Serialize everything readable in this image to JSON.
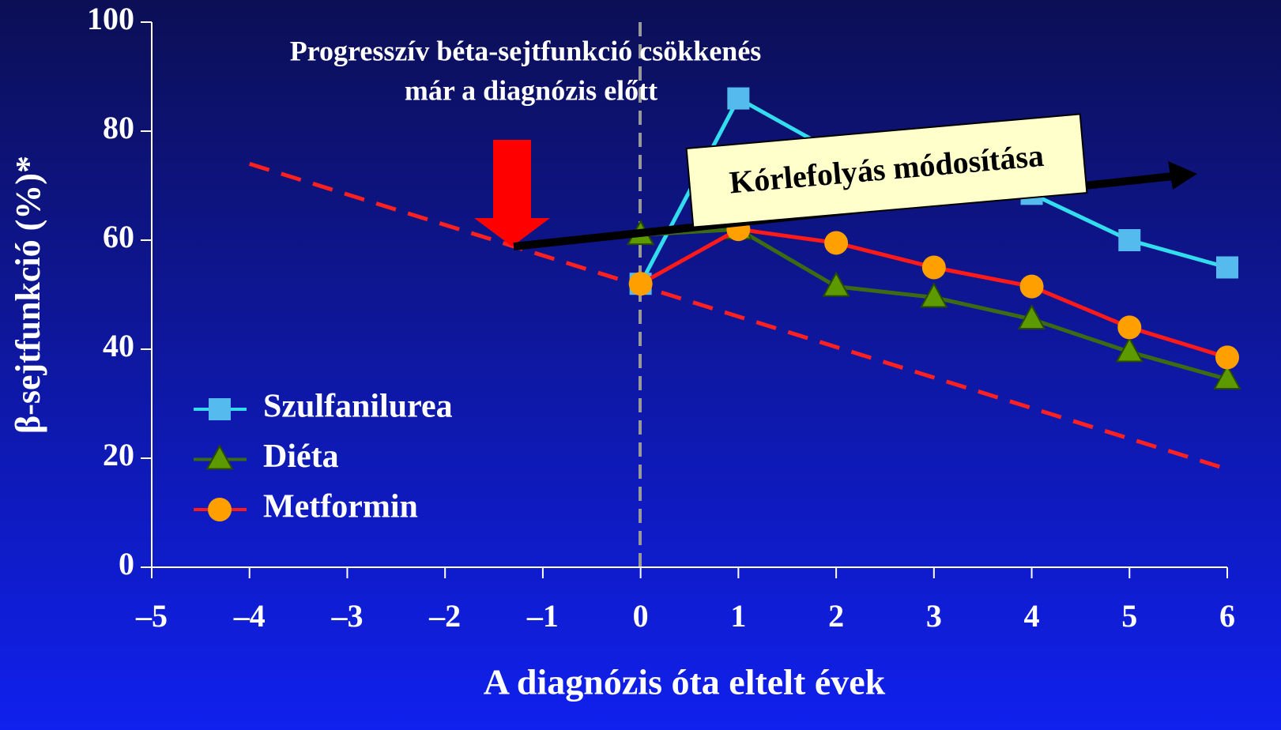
{
  "chart_data": {
    "type": "line",
    "ylabel": "β-sejtfunkció (%)*",
    "xlabel": "A diagnózis óta eltelt évek",
    "annotations": [
      "Progresszív béta-sejtfunkció csökkenés",
      "már a diagnózis előtt",
      "Kórlefolyás módosítása"
    ],
    "xlim": [
      -5,
      6
    ],
    "ylim": [
      0,
      100
    ],
    "xticks": [
      {
        "value": -5,
        "label": "–5"
      },
      {
        "value": -4,
        "label": "–4"
      },
      {
        "value": -3,
        "label": "–3"
      },
      {
        "value": -2,
        "label": "–2"
      },
      {
        "value": -1,
        "label": "–1"
      },
      0,
      1,
      2,
      3,
      4,
      5,
      6
    ],
    "yticks": [
      0,
      20,
      40,
      60,
      80,
      100
    ],
    "x": [
      0,
      1,
      2,
      3,
      4,
      5,
      6
    ],
    "series": [
      {
        "name": "Szulfanilurea",
        "color": "#33ddee",
        "marker": "square",
        "marker_color": "#55bbee",
        "values": [
          52,
          86,
          76,
          72,
          68.5,
          60,
          55
        ]
      },
      {
        "name": "Diéta",
        "color": "#3d6b14",
        "marker": "triangle",
        "marker_color": "#5c9a00",
        "values": [
          61,
          62,
          51.5,
          49.5,
          45.5,
          39.5,
          34.5
        ]
      },
      {
        "name": "Metformin",
        "color": "#ff1a1a",
        "marker": "circle",
        "marker_color": "#ffa000",
        "values": [
          52,
          62,
          59.5,
          55,
          51.5,
          44,
          38.5
        ]
      }
    ],
    "trend_line": {
      "x": [
        -4,
        6
      ],
      "values": [
        74,
        18
      ],
      "color": "#ff2020"
    }
  }
}
